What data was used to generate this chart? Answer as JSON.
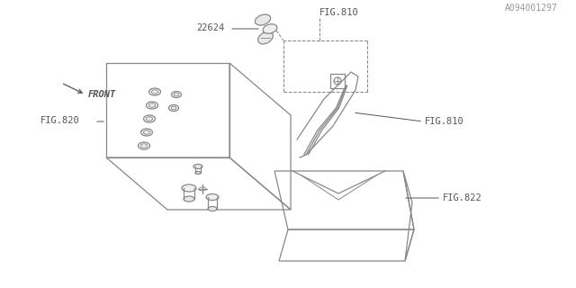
{
  "bg_color": "#ffffff",
  "line_color": "#888888",
  "text_color": "#555555",
  "title_bottom_right": "A094001297",
  "labels": {
    "fig820": "FIG.820",
    "fig822": "FIG.822",
    "fig810_upper": "FIG.810",
    "fig810_lower": "FIG.810",
    "part22624": "22624",
    "front": "FRONT"
  },
  "lw": 0.9
}
